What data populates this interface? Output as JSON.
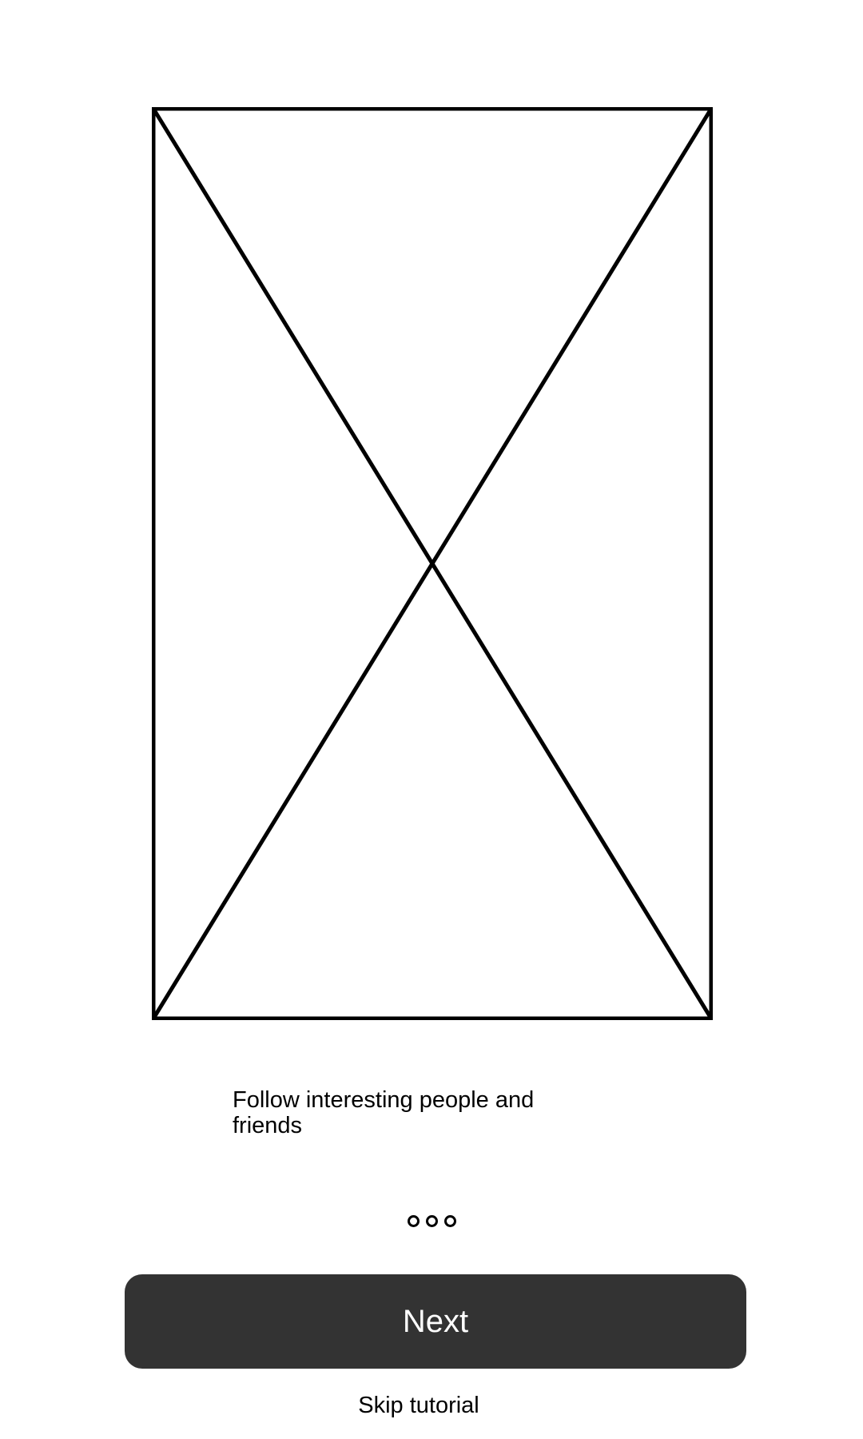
{
  "onboarding": {
    "image_icon": "image-placeholder-icon",
    "description": "Follow interesting people and friends",
    "pager": {
      "pages": 3,
      "current_page": 1
    },
    "next_label": "Next",
    "skip_label": "Skip tutorial"
  }
}
